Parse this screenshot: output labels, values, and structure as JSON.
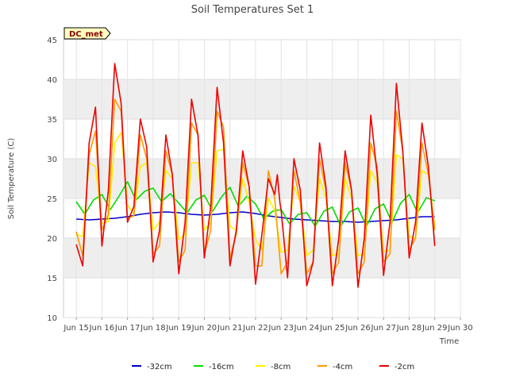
{
  "chart_data": {
    "type": "line",
    "title": "Soil Temperatures Set 1",
    "xlabel": "Time",
    "ylabel": "Soil Temperature (C)",
    "badge": "DC_met",
    "xlim": [
      14.5,
      30
    ],
    "ylim": [
      10,
      45
    ],
    "x_ticks": [
      {
        "value": 15,
        "label": "Jun 15"
      },
      {
        "value": 16,
        "label": "Jun 16"
      },
      {
        "value": 17,
        "label": "Jun 17"
      },
      {
        "value": 18,
        "label": "Jun 18"
      },
      {
        "value": 19,
        "label": "Jun 19"
      },
      {
        "value": 20,
        "label": "Jun 20"
      },
      {
        "value": 21,
        "label": "Jun 21"
      },
      {
        "value": 22,
        "label": "Jun 22"
      },
      {
        "value": 23,
        "label": "Jun 23"
      },
      {
        "value": 24,
        "label": "Jun 24"
      },
      {
        "value": 25,
        "label": "Jun 25"
      },
      {
        "value": 26,
        "label": "Jun 26"
      },
      {
        "value": 27,
        "label": "Jun 27"
      },
      {
        "value": 28,
        "label": "Jun 28"
      },
      {
        "value": 29,
        "label": "Jun 29"
      },
      {
        "value": 30,
        "label": "Jun 30"
      }
    ],
    "y_ticks": [
      10,
      15,
      20,
      25,
      30,
      35,
      40,
      45
    ],
    "grid": true,
    "legend_position": "bottom",
    "series": [
      {
        "name": "-32cm",
        "color": "#0000cc",
        "x": [
          15.0,
          15.5,
          16.0,
          16.5,
          17.0,
          17.5,
          18.0,
          18.5,
          19.0,
          19.5,
          20.0,
          20.5,
          21.0,
          21.5,
          22.0,
          22.5,
          23.0,
          23.5,
          24.0,
          24.5,
          25.0,
          25.5,
          26.0,
          26.5,
          27.0,
          27.5,
          28.0,
          28.5,
          29.0
        ],
        "y": [
          22.4,
          22.3,
          22.4,
          22.5,
          22.7,
          23.0,
          23.2,
          23.3,
          23.2,
          23.0,
          22.9,
          23.0,
          23.2,
          23.3,
          23.1,
          22.8,
          22.6,
          22.4,
          22.3,
          22.2,
          22.1,
          22.1,
          22.0,
          22.1,
          22.2,
          22.3,
          22.5,
          22.7,
          22.7
        ]
      },
      {
        "name": "-16cm",
        "color": "#00dd00",
        "x": [
          15.0,
          15.33,
          15.67,
          16.0,
          16.33,
          16.67,
          17.0,
          17.33,
          17.67,
          18.0,
          18.33,
          18.67,
          19.0,
          19.33,
          19.67,
          20.0,
          20.33,
          20.67,
          21.0,
          21.33,
          21.67,
          22.0,
          22.33,
          22.67,
          23.0,
          23.33,
          23.67,
          24.0,
          24.33,
          24.67,
          25.0,
          25.33,
          25.67,
          26.0,
          26.33,
          26.67,
          27.0,
          27.33,
          27.67,
          28.0,
          28.33,
          28.67,
          29.0
        ],
        "y": [
          24.6,
          23.0,
          24.8,
          25.5,
          23.6,
          25.3,
          27.1,
          24.8,
          25.9,
          26.3,
          24.6,
          25.6,
          24.4,
          23.2,
          24.8,
          25.4,
          23.4,
          25.2,
          26.4,
          24.0,
          25.3,
          24.3,
          22.4,
          23.4,
          23.6,
          21.8,
          23.0,
          23.2,
          21.5,
          23.4,
          23.9,
          21.5,
          23.3,
          23.8,
          21.5,
          23.7,
          24.3,
          22.0,
          24.4,
          25.5,
          23.2,
          25.1,
          24.7
        ]
      },
      {
        "name": "-8cm",
        "color": "#ffee00",
        "x": [
          15.0,
          15.25,
          15.5,
          15.75,
          16.0,
          16.25,
          16.5,
          16.75,
          17.0,
          17.25,
          17.5,
          17.75,
          18.0,
          18.25,
          18.5,
          18.75,
          19.0,
          19.25,
          19.5,
          19.75,
          20.0,
          20.25,
          20.5,
          20.75,
          21.0,
          21.25,
          21.5,
          21.75,
          22.0,
          22.25,
          22.5,
          22.75,
          23.0,
          23.25,
          23.5,
          23.75,
          24.0,
          24.25,
          24.5,
          24.75,
          25.0,
          25.25,
          25.5,
          25.75,
          26.0,
          26.25,
          26.5,
          26.75,
          27.0,
          27.25,
          27.5,
          27.75,
          28.0,
          28.25,
          28.5,
          28.75,
          29.0
        ],
        "y": [
          20.5,
          20.2,
          29.5,
          29.0,
          21.8,
          22.1,
          32.0,
          33.3,
          24.2,
          23.0,
          29.0,
          29.5,
          21.0,
          22.0,
          28.5,
          27.5,
          19.8,
          20.5,
          29.5,
          29.5,
          21.0,
          22.0,
          31.0,
          31.2,
          21.5,
          21.0,
          27.5,
          24.5,
          19.8,
          18.5,
          25.0,
          23.5,
          18.2,
          18.5,
          26.5,
          24.5,
          17.8,
          18.5,
          27.5,
          25.0,
          17.8,
          18.0,
          27.5,
          25.0,
          17.8,
          18.0,
          28.5,
          27.0,
          18.3,
          18.5,
          30.5,
          30.0,
          20.2,
          20.0,
          28.5,
          28.0,
          21.5
        ]
      },
      {
        "name": "-4cm",
        "color": "#ff9900",
        "x": [
          15.0,
          15.25,
          15.5,
          15.75,
          16.0,
          16.25,
          16.5,
          16.75,
          17.0,
          17.25,
          17.5,
          17.75,
          18.0,
          18.25,
          18.5,
          18.75,
          19.0,
          19.25,
          19.5,
          19.75,
          20.0,
          20.25,
          20.5,
          20.75,
          21.0,
          21.25,
          21.5,
          21.75,
          22.0,
          22.25,
          22.5,
          22.75,
          23.0,
          23.25,
          23.5,
          23.75,
          24.0,
          24.25,
          24.5,
          24.75,
          25.0,
          25.25,
          25.5,
          25.75,
          26.0,
          26.25,
          26.5,
          26.75,
          27.0,
          27.25,
          27.5,
          27.75,
          28.0,
          28.25,
          28.5,
          28.75,
          29.0
        ],
        "y": [
          20.8,
          17.8,
          30.5,
          33.5,
          21.0,
          23.0,
          37.5,
          36.0,
          22.5,
          22.8,
          33.0,
          30.0,
          18.0,
          19.0,
          31.0,
          28.0,
          17.0,
          18.5,
          34.5,
          33.0,
          18.0,
          21.0,
          36.0,
          34.0,
          17.5,
          20.5,
          29.5,
          26.5,
          16.5,
          16.5,
          28.5,
          25.0,
          15.5,
          17.0,
          28.5,
          24.5,
          15.5,
          17.0,
          30.0,
          26.0,
          15.5,
          17.0,
          29.5,
          26.0,
          15.5,
          17.0,
          32.0,
          29.0,
          17.0,
          18.0,
          36.0,
          31.0,
          18.5,
          20.0,
          32.0,
          28.0,
          21.0
        ]
      },
      {
        "name": "-2cm",
        "color": "#ee0000",
        "x": [
          15.0,
          15.25,
          15.5,
          15.75,
          16.0,
          16.25,
          16.5,
          16.75,
          17.0,
          17.25,
          17.5,
          17.75,
          18.0,
          18.25,
          18.5,
          18.75,
          19.0,
          19.25,
          19.5,
          19.75,
          20.0,
          20.25,
          20.5,
          20.75,
          21.0,
          21.25,
          21.5,
          21.75,
          22.0,
          22.25,
          22.5,
          22.75,
          22.85,
          22.95,
          23.0,
          23.25,
          23.5,
          23.75,
          24.0,
          24.25,
          24.5,
          24.75,
          25.0,
          25.25,
          25.5,
          25.75,
          26.0,
          26.25,
          26.5,
          26.75,
          27.0,
          27.25,
          27.5,
          27.75,
          28.0,
          28.25,
          28.5,
          28.75,
          29.0
        ],
        "y": [
          19.2,
          16.5,
          32.0,
          36.5,
          19.0,
          26.0,
          42.0,
          37.0,
          22.0,
          24.0,
          35.0,
          31.5,
          17.0,
          21.0,
          33.0,
          28.0,
          15.5,
          22.0,
          37.5,
          33.0,
          17.5,
          24.0,
          39.0,
          32.0,
          16.5,
          21.0,
          31.0,
          26.5,
          14.2,
          20.5,
          27.5,
          25.5,
          28.0,
          24.5,
          23.5,
          15.0,
          30.0,
          26.0,
          14.0,
          17.0,
          32.0,
          26.5,
          14.0,
          20.0,
          31.0,
          26.0,
          13.8,
          20.0,
          35.5,
          28.0,
          15.3,
          22.0,
          39.5,
          31.0,
          17.5,
          22.0,
          34.5,
          29.0,
          19.0
        ]
      }
    ]
  }
}
